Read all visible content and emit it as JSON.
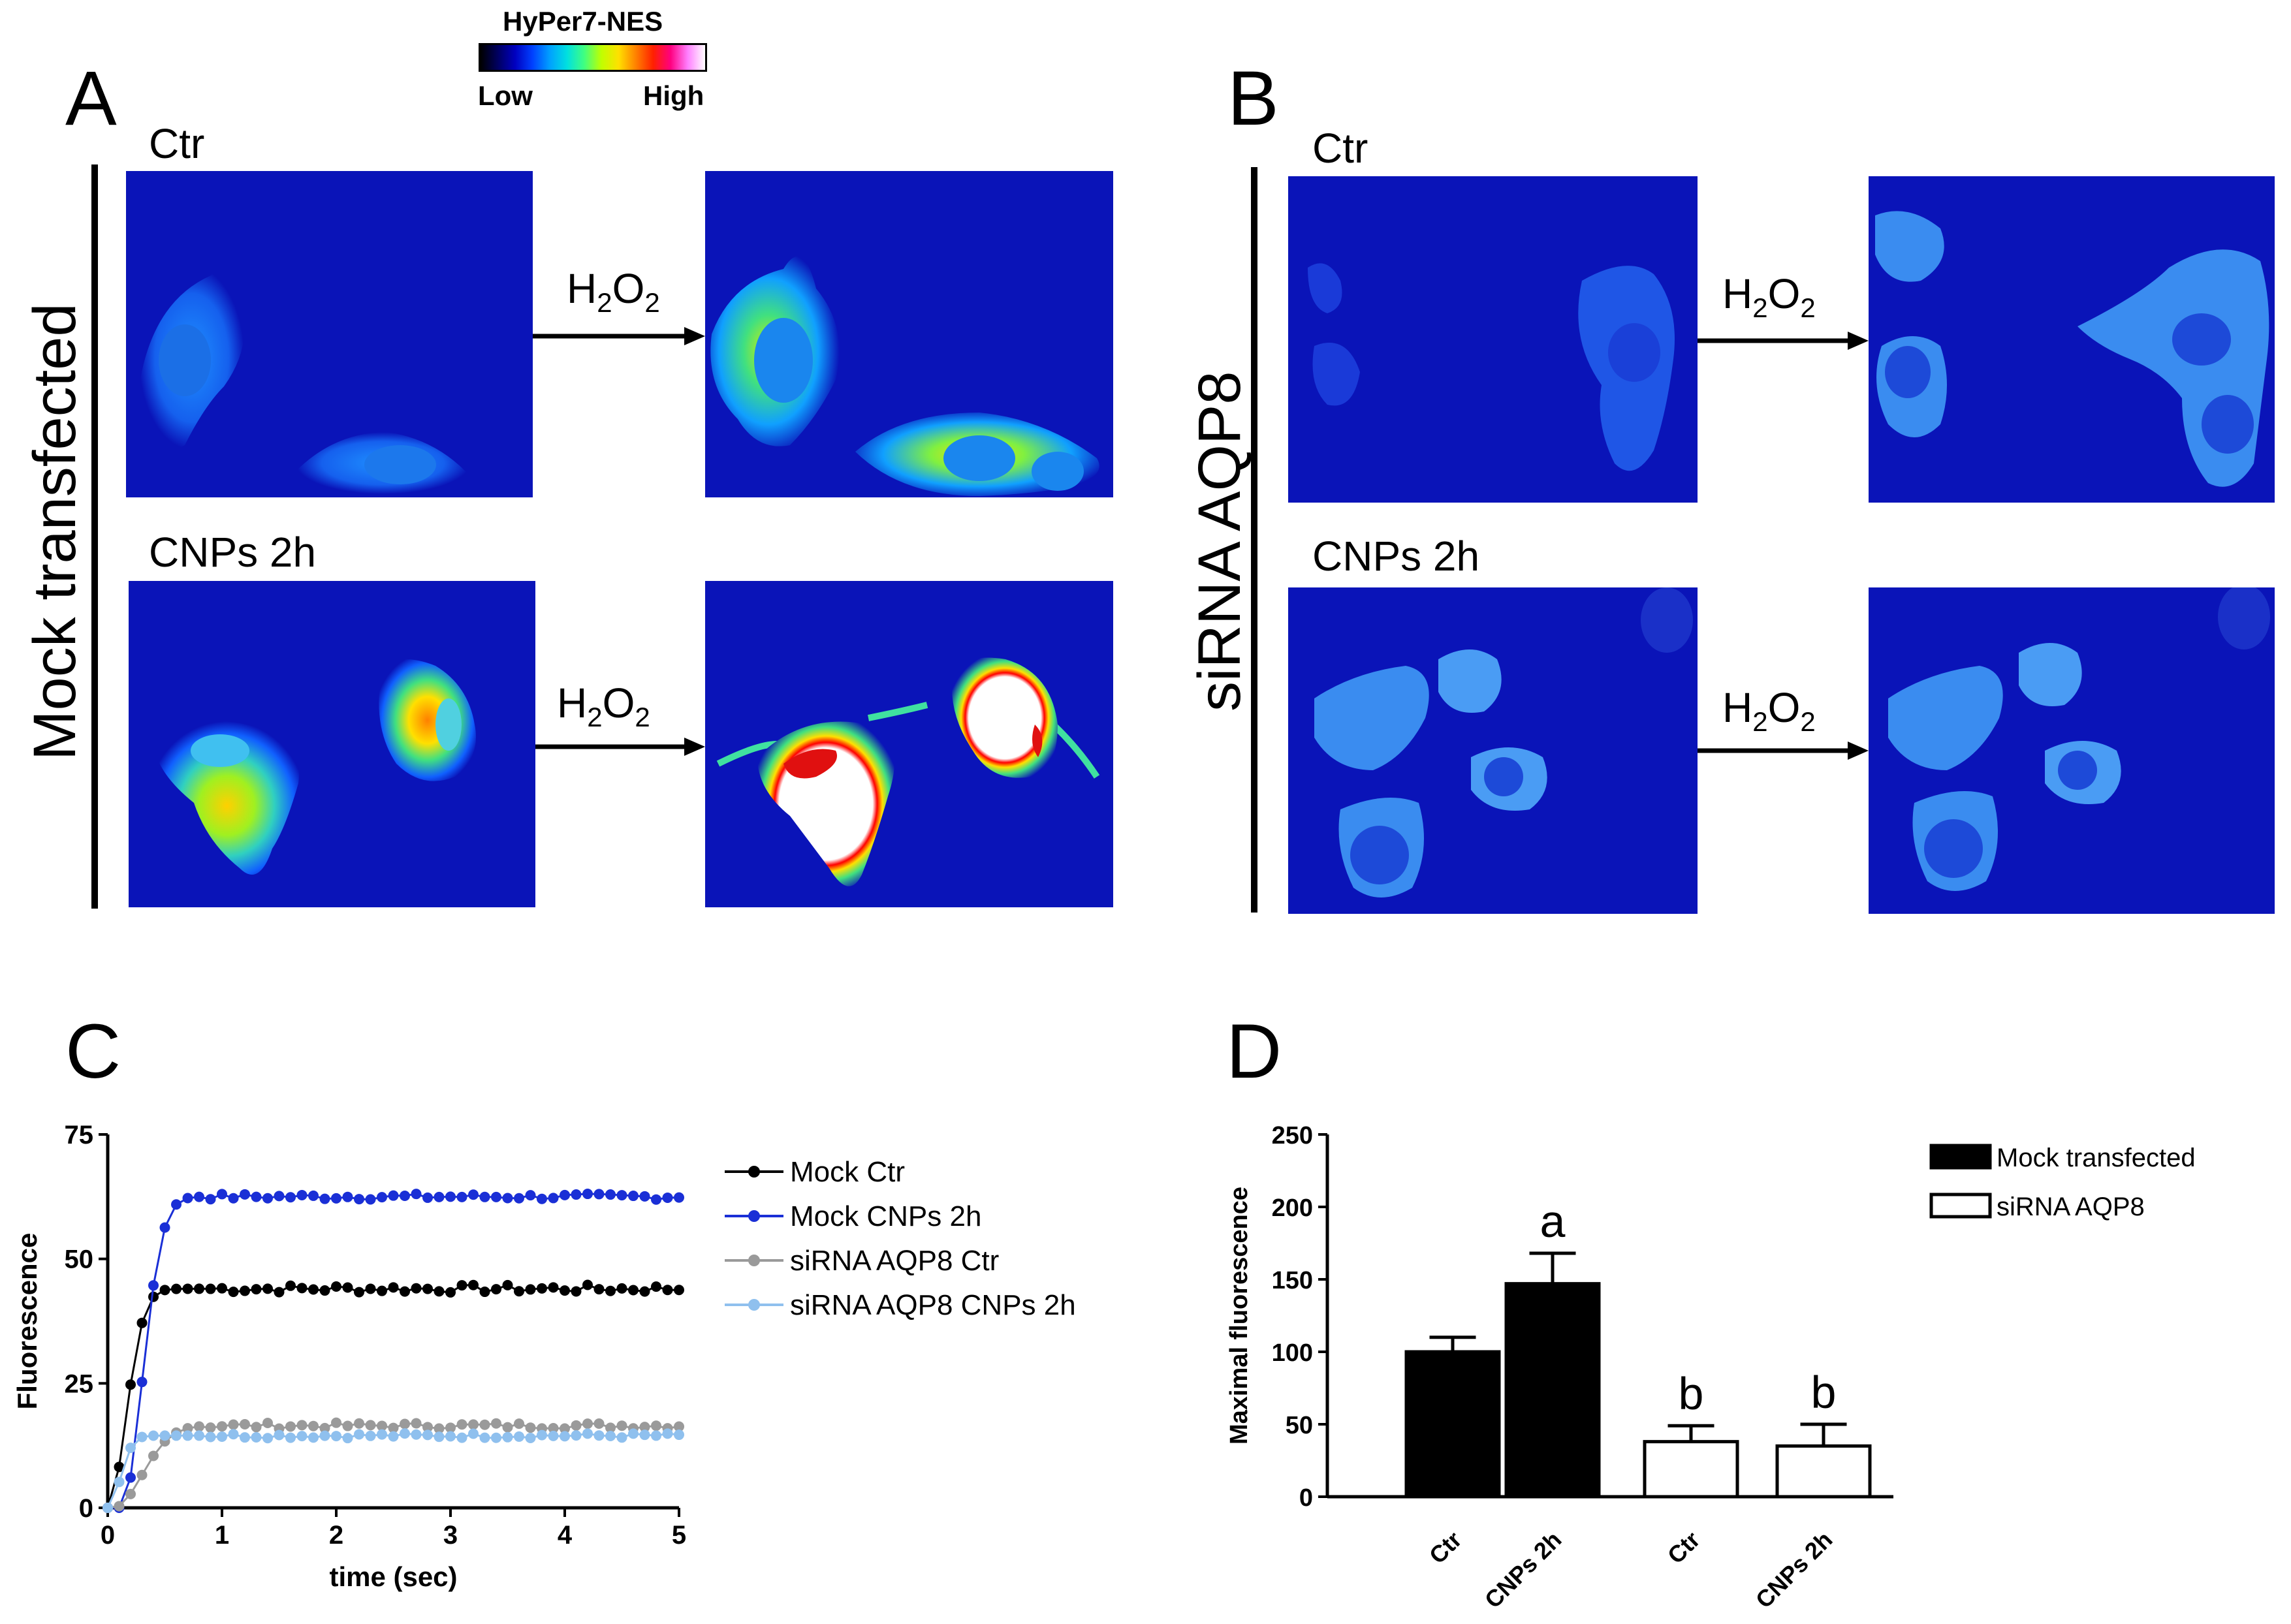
{
  "panels": {
    "A": {
      "letter": "A",
      "side_label": "Mock transfected",
      "ctr_label": "Ctr",
      "cnp_label": "CNPs 2h"
    },
    "B": {
      "letter": "B",
      "side_label": "siRNA AQP8",
      "ctr_label": "Ctr",
      "cnp_label": "CNPs 2h"
    },
    "C": {
      "letter": "C"
    },
    "D": {
      "letter": "D"
    }
  },
  "arrow_label": {
    "main": "H",
    "sub1": "2",
    "mid": "O",
    "sub2": "2"
  },
  "colorscale": {
    "title": "HyPer7-NES",
    "low": "Low",
    "high": "High",
    "colors": [
      "#000000",
      "#000060",
      "#0000c0",
      "#0040ff",
      "#00a0ff",
      "#00e0e0",
      "#40ff80",
      "#c0ff00",
      "#ffe000",
      "#ff8000",
      "#ff2000",
      "#ff0080",
      "#ff80ff",
      "#ffffff"
    ]
  },
  "colors": {
    "bg_blue": "#0a14b8",
    "mock_ctr": "#000000",
    "mock_cnp": "#1a2fd6",
    "sirna_ctr": "#9a9a9a",
    "sirna_cnp": "#8fc0ee"
  },
  "chart_data": [
    {
      "type": "line",
      "xlabel": "time (sec)",
      "ylabel": "Fluorescence",
      "xlim": [
        0,
        5
      ],
      "ylim": [
        0,
        75
      ],
      "xticks": [
        0,
        1,
        2,
        3,
        4,
        5
      ],
      "yticks": [
        0,
        25,
        50,
        75
      ],
      "series": [
        {
          "name": "Mock Ctr",
          "plateau": 44,
          "tau": 0.22,
          "delay": 0.0,
          "noise": 0.8
        },
        {
          "name": "Mock CNPs 2h",
          "plateau": 62.5,
          "tau": 0.25,
          "delay": 0.12,
          "noise": 0.6
        },
        {
          "name": "siRNA AQP8 Ctr",
          "plateau": 16.5,
          "tau": 0.35,
          "delay": 0.05,
          "noise": 0.6
        },
        {
          "name": "siRNA AQP8 CNPs 2h",
          "plateau": 14.5,
          "tau": 0.15,
          "delay": 0.0,
          "noise": 0.5
        }
      ],
      "legend": [
        "Mock Ctr",
        "Mock CNPs 2h",
        "siRNA AQP8 Ctr",
        "siRNA AQP8 CNPs 2h"
      ]
    },
    {
      "type": "bar",
      "ylabel": "Maximal fluorescence",
      "ylim": [
        0,
        250
      ],
      "yticks": [
        0,
        50,
        100,
        150,
        200,
        250
      ],
      "categories": [
        "Ctr",
        "CNPs 2h",
        "Ctr",
        "CNPs 2h"
      ],
      "values": [
        100,
        147,
        38,
        35
      ],
      "errors": [
        10,
        21,
        11,
        15
      ],
      "groups": [
        "Mock transfected",
        "Mock transfected",
        "siRNA AQP8",
        "siRNA AQP8"
      ],
      "annotations": [
        "",
        "a",
        "b",
        "b"
      ],
      "legend": [
        "Mock transfected",
        "siRNA AQP8"
      ]
    }
  ]
}
